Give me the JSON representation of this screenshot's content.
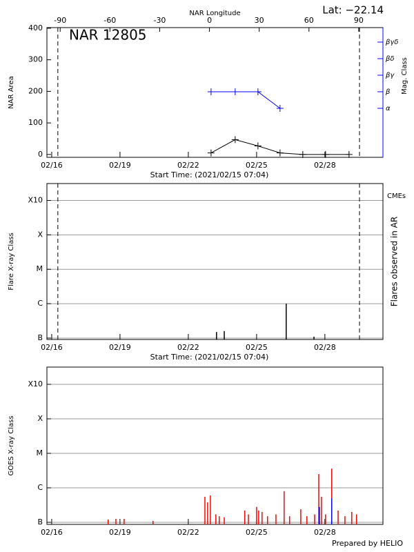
{
  "footer": "Prepared by HELIO",
  "chart_data": [
    {
      "type": "line",
      "title": "NAR 12805",
      "annotation": "Lat: −22.14",
      "x2label": "NAR Longitude",
      "x2lim": [
        -98,
        104.6
      ],
      "x2ticks": [
        -90,
        -60,
        -30,
        0,
        30,
        60,
        90
      ],
      "xlim": [
        15.79,
        30.55
      ],
      "xticks": [
        {
          "value": 16,
          "label": "02/16"
        },
        {
          "value": 19,
          "label": "02/19"
        },
        {
          "value": 22,
          "label": "02/22"
        },
        {
          "value": 25,
          "label": "02/25"
        },
        {
          "value": 28,
          "label": "02/28"
        }
      ],
      "xlabel": "Start Time: (2021/02/15 07:04)",
      "ylabel": "NAR Area",
      "ylim": [
        -9,
        402
      ],
      "yticks": [
        0,
        100,
        200,
        300,
        400
      ],
      "y2label": "Mag. Class",
      "y2lim": [
        -1.96,
        5.875
      ],
      "y2ticks": [
        {
          "value": 1,
          "label": "α"
        },
        {
          "value": 2,
          "label": "β"
        },
        {
          "value": 3,
          "label": "βγ"
        },
        {
          "value": 4,
          "label": "βδ"
        },
        {
          "value": 5,
          "label": "βγδ"
        }
      ],
      "limb_lines": [
        16.27,
        29.52
      ],
      "series": [
        {
          "color": "#000000",
          "x": [
            23,
            24.06,
            25.06,
            26.03,
            27.03,
            28.03,
            29.06
          ],
          "values": [
            5,
            47,
            27,
            5,
            0,
            0,
            0
          ]
        },
        {
          "color": "#0000ff",
          "axis": "y2",
          "x": [
            23,
            24.06,
            25.06,
            26.03
          ],
          "values": [
            2,
            2,
            2,
            1
          ]
        }
      ]
    },
    {
      "type": "bar",
      "annotation": "CMEs",
      "xlim": [
        15.79,
        30.55
      ],
      "xticks": [
        {
          "value": 16,
          "label": "02/16"
        },
        {
          "value": 19,
          "label": "02/19"
        },
        {
          "value": 22,
          "label": "02/22"
        },
        {
          "value": 25,
          "label": "02/25"
        },
        {
          "value": 28,
          "label": "02/28"
        }
      ],
      "xlabel": "Start Time: (2021/02/15 07:04)",
      "ylabel": "Flare X-ray Class",
      "y2label": "Flares observed in AR",
      "log": true,
      "grid": true,
      "ylim": [
        9.1e-08,
        0.0031
      ],
      "yticks": [
        {
          "value": 1e-07,
          "label": "B"
        },
        {
          "value": 1e-06,
          "label": "C"
        },
        {
          "value": 1e-05,
          "label": "M"
        },
        {
          "value": 0.0001,
          "label": "X"
        },
        {
          "value": 0.001,
          "label": "X10"
        }
      ],
      "limb_lines": [
        16.27,
        29.52
      ],
      "series": [
        {
          "color": "#000000",
          "x": [
            23.24,
            23.58,
            26.3,
            27.52
          ],
          "values": [
            1.5e-07,
            1.6e-07,
            1e-06,
            1.1e-07
          ]
        }
      ]
    },
    {
      "type": "bar",
      "xlim": [
        15.79,
        30.55
      ],
      "xticks": [
        {
          "value": 16,
          "label": "02/16"
        },
        {
          "value": 19,
          "label": "02/19"
        },
        {
          "value": 22,
          "label": "02/22"
        },
        {
          "value": 25,
          "label": "02/25"
        },
        {
          "value": 28,
          "label": "02/28"
        }
      ],
      "ylabel": "GOES X-ray Class",
      "log": true,
      "grid": true,
      "ylim": [
        8.7e-08,
        0.00316
      ],
      "yticks": [
        {
          "value": 1e-07,
          "label": "B"
        },
        {
          "value": 1e-06,
          "label": "C"
        },
        {
          "value": 1e-05,
          "label": "M"
        },
        {
          "value": 0.0001,
          "label": "X"
        },
        {
          "value": 0.001,
          "label": "X10"
        }
      ],
      "series": [
        {
          "color": "#ff0000",
          "x": [
            18.48,
            18.82,
            19.18,
            20.45,
            22.73,
            22.85,
            22.97,
            23.21,
            23.36,
            23.58,
            24.48,
            24.64,
            25.0,
            25.09,
            25.24,
            25.48,
            25.85,
            26.21,
            26.45,
            26.94,
            27.21,
            27.55,
            27.73,
            27.85,
            28.03,
            28.3,
            28.58,
            28.88,
            29.18,
            29.39
          ],
          "values": [
            1.2e-07,
            1.26e-07,
            1.26e-07,
            1.1e-07,
            5.5e-07,
            3.8e-07,
            6e-07,
            1.7e-07,
            1.5e-07,
            1.4e-07,
            2.2e-07,
            1.7e-07,
            2.8e-07,
            2.2e-07,
            2e-07,
            1.5e-07,
            1.7e-07,
            8e-07,
            1.5e-07,
            2.4e-07,
            1.5e-07,
            1.7e-07,
            2.5e-06,
            5.5e-07,
            1.7e-07,
            3.6e-06,
            2.2e-07,
            1.5e-07,
            2e-07,
            1.7e-07
          ]
        },
        {
          "color": "#0000ff",
          "x": [
            27.76,
            28.3
          ],
          "values": [
            2.8e-07,
            5e-07
          ]
        }
      ]
    }
  ]
}
